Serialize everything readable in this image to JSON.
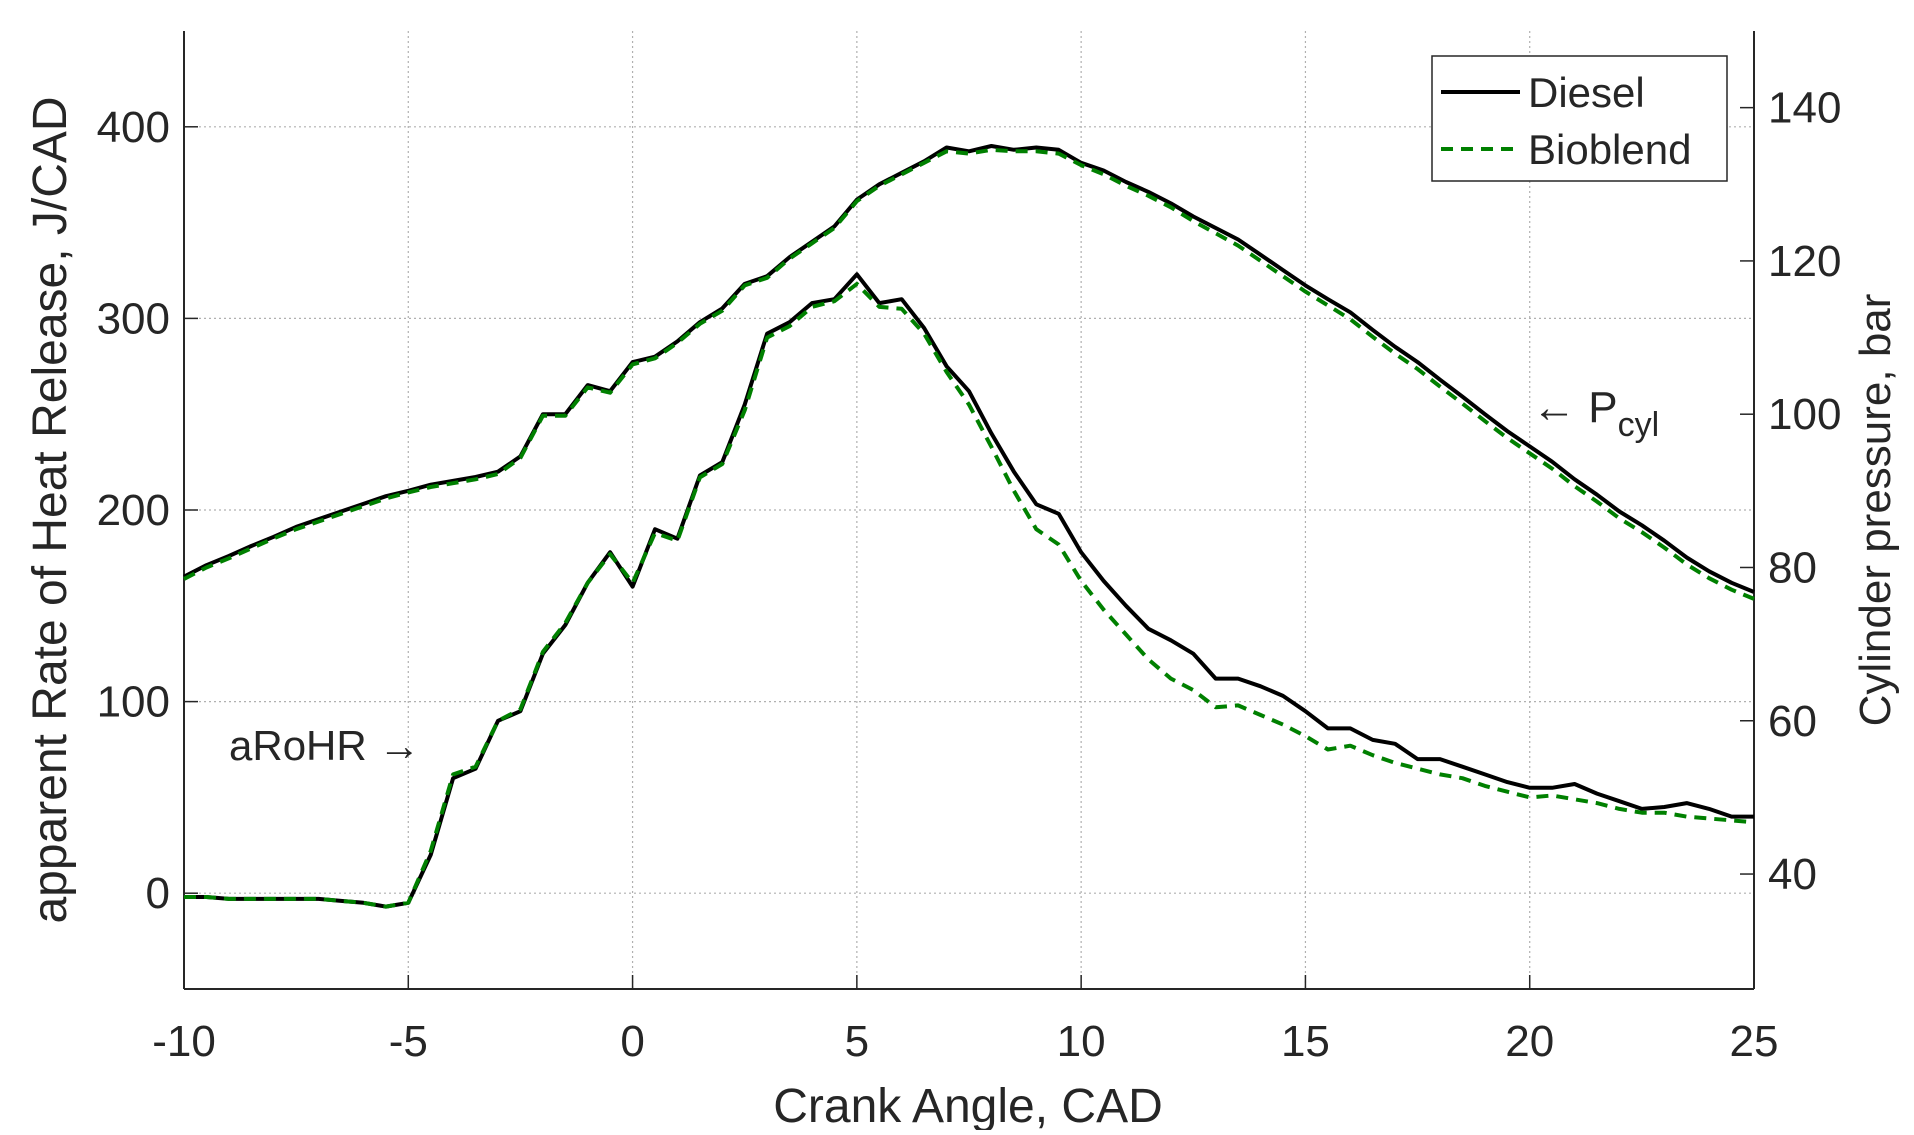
{
  "chart_data": {
    "type": "line",
    "xlabel": "Crank Angle, CAD",
    "ylabel": "apparent Rate of Heat Release, J/CAD",
    "y2label": "Cylinder pressure, bar",
    "xlim": [
      -10,
      25
    ],
    "xticks": [
      -10,
      -5,
      0,
      5,
      10,
      15,
      20,
      25
    ],
    "ylim": [
      -50,
      450
    ],
    "yticks": [
      0,
      100,
      200,
      300,
      400
    ],
    "y2lim": [
      25,
      150
    ],
    "y2ticks": [
      40,
      60,
      80,
      100,
      120,
      140
    ],
    "grid": true,
    "legend": "upper right",
    "annotations": [
      {
        "text": "aRoHR →"
      },
      {
        "text": "← P",
        "sub": "cyl"
      }
    ],
    "x": [
      -10,
      -9.5,
      -9,
      -8.5,
      -8,
      -7.5,
      -7,
      -6.5,
      -6,
      -5.5,
      -5,
      -4.5,
      -4,
      -3.5,
      -3,
      -2.5,
      -2,
      -1.5,
      -1,
      -0.5,
      0,
      0.5,
      1,
      1.5,
      2,
      2.5,
      3,
      3.5,
      4,
      4.5,
      5,
      5.5,
      6,
      6.5,
      7,
      7.5,
      8,
      8.5,
      9,
      9.5,
      10,
      10.5,
      11,
      11.5,
      12,
      12.5,
      13,
      13.5,
      14,
      14.5,
      15,
      15.5,
      16,
      16.5,
      17,
      17.5,
      18,
      18.5,
      19,
      19.5,
      20,
      20.5,
      21,
      21.5,
      22,
      22.5,
      23,
      23.5,
      24,
      24.5,
      25
    ],
    "series": [
      {
        "name": "Diesel",
        "color": "#000000",
        "dash": false,
        "values": [
          -2,
          -2,
          -3,
          -3,
          -3,
          -3,
          -3,
          -4,
          -5,
          -7,
          -5,
          20,
          60,
          65,
          90,
          95,
          125,
          140,
          162,
          178,
          160,
          190,
          185,
          218,
          225,
          255,
          292,
          298,
          308,
          310,
          323,
          308,
          310,
          295,
          275,
          262,
          240,
          220,
          203,
          198,
          178,
          163,
          150,
          138,
          132,
          125,
          112,
          112,
          108,
          103,
          95,
          86,
          86,
          80,
          78,
          70,
          70,
          66,
          62,
          58,
          55,
          55,
          57,
          52,
          48,
          44,
          45,
          47,
          44,
          40,
          40
        ],
        "y2_values": [
          78.8,
          80.3,
          81.5,
          82.8,
          84,
          85.3,
          86.3,
          87.3,
          88.3,
          89.3,
          90,
          90.8,
          91.3,
          91.8,
          92.5,
          94.5,
          100,
          100,
          103.8,
          103,
          106.8,
          107.5,
          109.5,
          112,
          113.8,
          117,
          118,
          120.5,
          122.5,
          124.5,
          128,
          130,
          131.5,
          133,
          134.8,
          134.3,
          135,
          134.5,
          134.8,
          134.5,
          132.8,
          131.8,
          130.3,
          129,
          127.5,
          125.8,
          124.3,
          122.8,
          120.8,
          118.8,
          116.8,
          115,
          113.3,
          111,
          108.8,
          106.8,
          104.5,
          102.3,
          100,
          97.8,
          95.8,
          93.8,
          91.5,
          89.5,
          87.3,
          85.5,
          83.5,
          81.3,
          79.5,
          78,
          76.8
        ]
      },
      {
        "name": "Bioblend",
        "color": "#008000",
        "dash": true,
        "values": [
          -2,
          -2,
          -3,
          -3,
          -3,
          -3,
          -3,
          -4,
          -5,
          -7,
          -5,
          22,
          62,
          66,
          90,
          96,
          126,
          141,
          162,
          177,
          162,
          188,
          184,
          217,
          224,
          252,
          290,
          296,
          306,
          309,
          318,
          306,
          305,
          292,
          272,
          255,
          233,
          210,
          190,
          182,
          163,
          148,
          135,
          122,
          112,
          106,
          97,
          98,
          93,
          88,
          82,
          75,
          77,
          72,
          68,
          65,
          62,
          60,
          56,
          53,
          50,
          51,
          49,
          47,
          44,
          42,
          42,
          40,
          39,
          38,
          37
        ],
        "y2_values": [
          78.5,
          80,
          81.2,
          82.5,
          83.8,
          85,
          86,
          87,
          88,
          89,
          89.8,
          90.5,
          91,
          91.5,
          92.2,
          94.3,
          99.8,
          99.8,
          103.5,
          102.8,
          106.5,
          107.3,
          109.3,
          111.8,
          113.5,
          116.8,
          117.8,
          120.3,
          122.3,
          124.3,
          127.8,
          129.8,
          131.3,
          132.8,
          134.3,
          134,
          134.5,
          134.3,
          134.3,
          134,
          132.5,
          131.3,
          129.8,
          128.5,
          127,
          125.2,
          123.6,
          122,
          120,
          118,
          116,
          114.2,
          112.4,
          110.1,
          107.9,
          105.9,
          103.6,
          101.4,
          99.1,
          96.9,
          94.9,
          92.9,
          90.6,
          88.6,
          86.4,
          84.6,
          82.6,
          80.4,
          78.6,
          77.1,
          75.9
        ]
      }
    ]
  }
}
